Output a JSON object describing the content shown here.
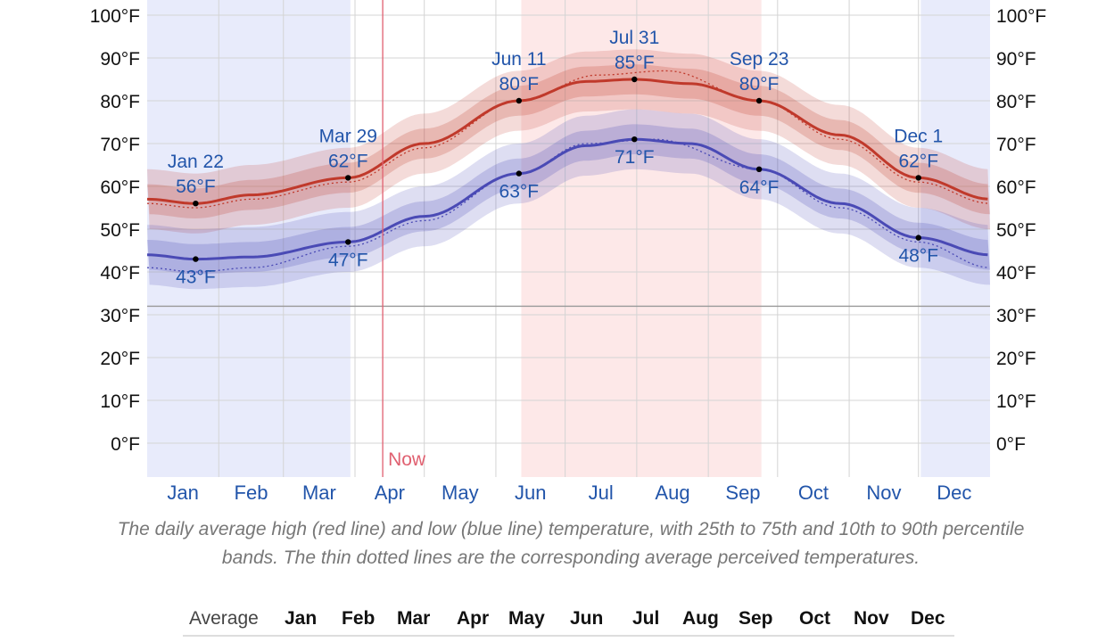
{
  "chart_data": {
    "type": "line",
    "y_unit": "°F",
    "ylim": [
      -8,
      104
    ],
    "y_ticks": [
      "0°F",
      "10°F",
      "20°F",
      "30°F",
      "40°F",
      "50°F",
      "60°F",
      "70°F",
      "80°F",
      "90°F",
      "100°F"
    ],
    "months": [
      "Jan",
      "Feb",
      "Mar",
      "Apr",
      "May",
      "Jun",
      "Jul",
      "Aug",
      "Sep",
      "Oct",
      "Nov",
      "Dec"
    ],
    "grid": true,
    "freezing_line": 32,
    "cold_season": [
      {
        "from_day": 0,
        "to_day": 88
      },
      {
        "from_day": 335,
        "to_day": 365
      }
    ],
    "warm_season": {
      "from_day": 162,
      "to_day": 266
    },
    "now": {
      "day": 102,
      "label": "Now"
    },
    "series": [
      {
        "name": "Average high",
        "color": "#c0392b",
        "annotations_above": true,
        "keypoints": [
          [
            0,
            57
          ],
          [
            21,
            56
          ],
          [
            45,
            58
          ],
          [
            87,
            62
          ],
          [
            120,
            70
          ],
          [
            161,
            80
          ],
          [
            190,
            84.5
          ],
          [
            211,
            85
          ],
          [
            235,
            84
          ],
          [
            265,
            80
          ],
          [
            300,
            72
          ],
          [
            334,
            62
          ],
          [
            365,
            57
          ]
        ],
        "perceived_keypoints": [
          [
            0,
            56
          ],
          [
            21,
            55
          ],
          [
            45,
            57
          ],
          [
            87,
            61
          ],
          [
            120,
            69
          ],
          [
            161,
            80
          ],
          [
            195,
            86
          ],
          [
            225,
            87
          ],
          [
            265,
            80
          ],
          [
            300,
            71
          ],
          [
            334,
            61
          ],
          [
            365,
            56
          ]
        ]
      },
      {
        "name": "Average low",
        "color": "#4a4ab5",
        "annotations_above": false,
        "keypoints": [
          [
            0,
            44
          ],
          [
            21,
            43
          ],
          [
            45,
            43.5
          ],
          [
            87,
            47
          ],
          [
            120,
            53
          ],
          [
            161,
            63
          ],
          [
            190,
            69.5
          ],
          [
            211,
            71
          ],
          [
            235,
            70
          ],
          [
            265,
            64
          ],
          [
            300,
            56
          ],
          [
            334,
            48
          ],
          [
            365,
            44
          ]
        ],
        "perceived_keypoints": [
          [
            0,
            41
          ],
          [
            21,
            40
          ],
          [
            45,
            41
          ],
          [
            87,
            46
          ],
          [
            120,
            52
          ],
          [
            161,
            63
          ],
          [
            190,
            70
          ],
          [
            220,
            71
          ],
          [
            265,
            64
          ],
          [
            300,
            55
          ],
          [
            334,
            47
          ],
          [
            365,
            41
          ]
        ]
      }
    ],
    "annotations": [
      {
        "series": 0,
        "day": 21,
        "date": "Jan 22",
        "value": "56°F",
        "v": 56
      },
      {
        "series": 0,
        "day": 87,
        "date": "Mar 29",
        "value": "62°F",
        "v": 62
      },
      {
        "series": 0,
        "day": 161,
        "date": "Jun 11",
        "value": "80°F",
        "v": 80
      },
      {
        "series": 0,
        "day": 211,
        "date": "Jul 31",
        "value": "85°F",
        "v": 85
      },
      {
        "series": 0,
        "day": 265,
        "date": "Sep 23",
        "value": "80°F",
        "v": 80
      },
      {
        "series": 0,
        "day": 334,
        "date": "Dec 1",
        "value": "62°F",
        "v": 62
      },
      {
        "series": 1,
        "day": 21,
        "date": "",
        "value": "43°F",
        "v": 43
      },
      {
        "series": 1,
        "day": 87,
        "date": "",
        "value": "47°F",
        "v": 47
      },
      {
        "series": 1,
        "day": 161,
        "date": "",
        "value": "63°F",
        "v": 63
      },
      {
        "series": 1,
        "day": 211,
        "date": "",
        "value": "71°F",
        "v": 71
      },
      {
        "series": 1,
        "day": 265,
        "date": "",
        "value": "64°F",
        "v": 64
      },
      {
        "series": 1,
        "day": 334,
        "date": "",
        "value": "48°F",
        "v": 48
      }
    ],
    "colors": {
      "cold_band": "#e8ebfb",
      "warm_band": "#fde8e8",
      "grid": "#d4d4d4",
      "axis_text": "#111111",
      "month_text": "#2255aa",
      "annotation_text": "#2255aa",
      "now_line": "#e06070"
    }
  },
  "caption": "The daily average high (red line) and low (blue line) temperature, with 25th to 75th and 10th to 90th percentile bands. The thin dotted lines are the corresponding average perceived temperatures.",
  "table": {
    "header_label": "Average",
    "months": [
      "Jan",
      "Feb",
      "Mar",
      "Apr",
      "May",
      "Jun",
      "Jul",
      "Aug",
      "Sep",
      "Oct",
      "Nov",
      "Dec"
    ]
  }
}
